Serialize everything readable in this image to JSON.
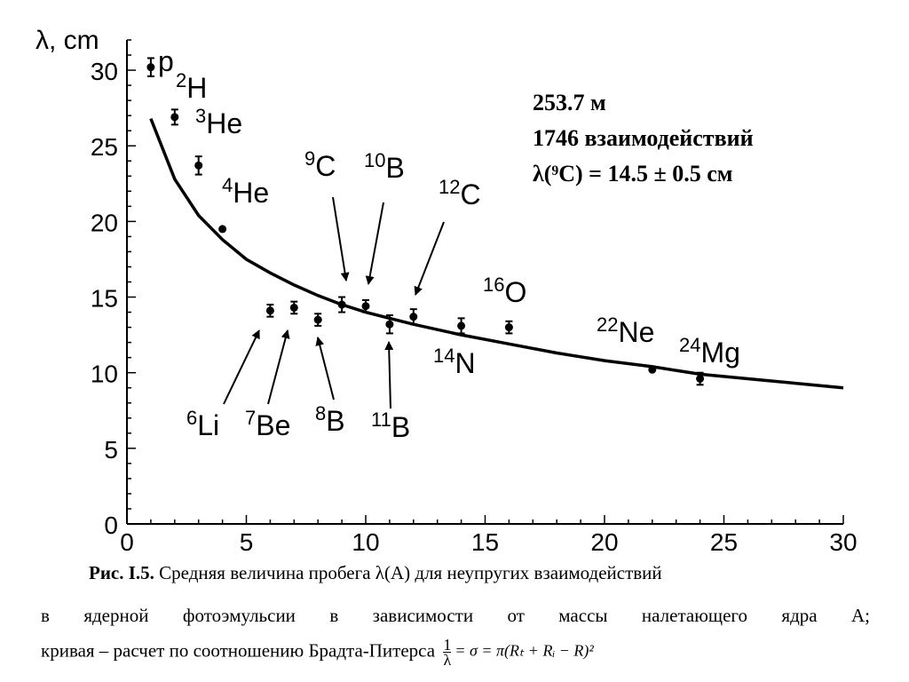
{
  "chart_data": {
    "type": "scatter",
    "ylabel": "λ, cm",
    "xlim": [
      0,
      30
    ],
    "ylim": [
      0,
      32
    ],
    "x_ticks": [
      0,
      5,
      10,
      15,
      20,
      25,
      30
    ],
    "y_ticks": [
      0,
      5,
      10,
      15,
      20,
      25,
      30
    ],
    "grid": false,
    "points": [
      {
        "x": 1,
        "y": 30.2,
        "err": 0.6,
        "nucleus": "p",
        "mass_num": ""
      },
      {
        "x": 2,
        "y": 26.9,
        "err": 0.5,
        "nucleus": "H",
        "mass_num": "2"
      },
      {
        "x": 3,
        "y": 23.7,
        "err": 0.6,
        "nucleus": "He",
        "mass_num": "3"
      },
      {
        "x": 4,
        "y": 19.5,
        "err": 0.0,
        "nucleus": "He",
        "mass_num": "4"
      },
      {
        "x": 6,
        "y": 14.1,
        "err": 0.4,
        "nucleus": "Li",
        "mass_num": "6"
      },
      {
        "x": 7,
        "y": 14.3,
        "err": 0.4,
        "nucleus": "Be",
        "mass_num": "7"
      },
      {
        "x": 8,
        "y": 13.5,
        "err": 0.4,
        "nucleus": "B",
        "mass_num": "8"
      },
      {
        "x": 9,
        "y": 14.5,
        "err": 0.5,
        "nucleus": "C",
        "mass_num": "9"
      },
      {
        "x": 10,
        "y": 14.4,
        "err": 0.4,
        "nucleus": "B",
        "mass_num": "10"
      },
      {
        "x": 11,
        "y": 13.2,
        "err": 0.6,
        "nucleus": "B",
        "mass_num": "11"
      },
      {
        "x": 12,
        "y": 13.7,
        "err": 0.5,
        "nucleus": "C",
        "mass_num": "12"
      },
      {
        "x": 14,
        "y": 13.1,
        "err": 0.5,
        "nucleus": "N",
        "mass_num": "14"
      },
      {
        "x": 16,
        "y": 13.0,
        "err": 0.4,
        "nucleus": "O",
        "mass_num": "16"
      },
      {
        "x": 22,
        "y": 10.2,
        "err": 0.0,
        "nucleus": "Ne",
        "mass_num": "22"
      },
      {
        "x": 24,
        "y": 9.6,
        "err": 0.4,
        "nucleus": "Mg",
        "mass_num": "24"
      }
    ],
    "curve": {
      "x": [
        1,
        2,
        3,
        4,
        5,
        6,
        7,
        8,
        9,
        10,
        11,
        12,
        14,
        16,
        18,
        20,
        22,
        24,
        26,
        28,
        30
      ],
      "y": [
        26.8,
        22.8,
        20.4,
        18.8,
        17.5,
        16.6,
        15.8,
        15.1,
        14.5,
        14.0,
        13.6,
        13.2,
        12.5,
        11.9,
        11.3,
        10.8,
        10.4,
        9.9,
        9.6,
        9.3,
        9.0
      ]
    },
    "annotation_lines": [
      "253.7 м",
      "1746 взаимодействий",
      "λ(⁹C) = 14.5 ± 0.5 см"
    ]
  },
  "caption": {
    "fig_label": "Рис. I.5.",
    "line1_rest": " Средняя величина пробега λ(A) для неупругих взаимодействий",
    "line2": "в ядерной фотоэмульсии в зависимости от массы налетающего ядра A;",
    "line3_prefix": "кривая – расчет по соотношению Брадта-Питерса",
    "formula_num": "1",
    "formula_den": "λ",
    "formula_rest": "= σ = π(Rₜ + Rᵢ − R)²"
  }
}
